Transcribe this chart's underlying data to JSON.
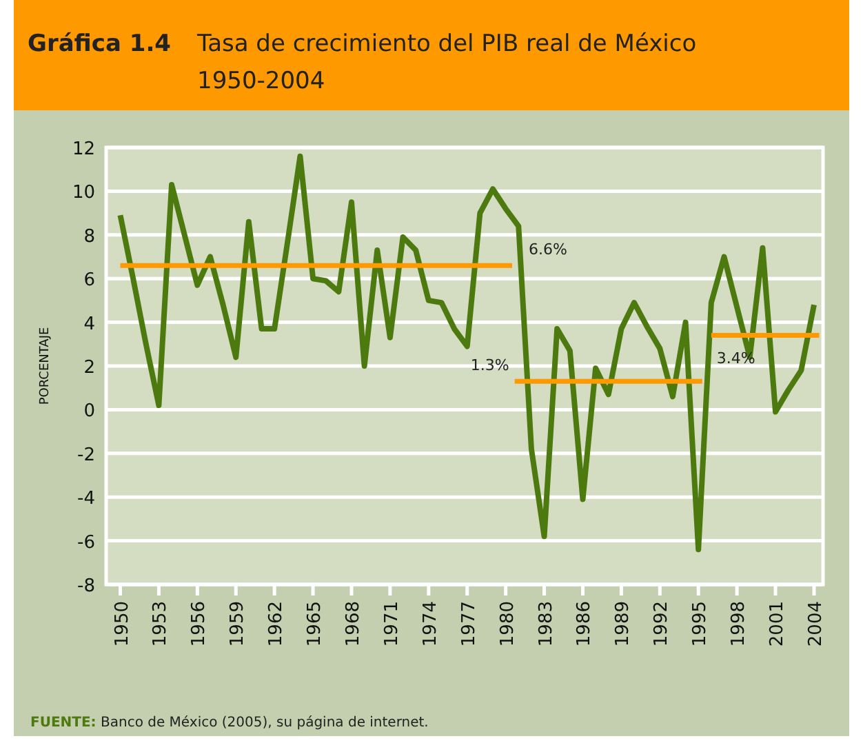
{
  "chart_data": {
    "type": "line",
    "title": "Gráfica 1.4",
    "subtitle": "Tasa de crecimiento del PIB real de México 1950-2004",
    "ylabel": "PORCENTAJE",
    "annotations": [
      "FUENTE: Banco de México (2005), su página de internet."
    ],
    "x": [
      1950,
      1951,
      1952,
      1953,
      1954,
      1955,
      1956,
      1957,
      1958,
      1959,
      1960,
      1961,
      1962,
      1963,
      1964,
      1965,
      1966,
      1967,
      1968,
      1969,
      1970,
      1971,
      1972,
      1973,
      1974,
      1975,
      1976,
      1977,
      1978,
      1979,
      1980,
      1981,
      1982,
      1983,
      1984,
      1985,
      1986,
      1987,
      1988,
      1989,
      1990,
      1991,
      1992,
      1993,
      1994,
      1995,
      1996,
      1997,
      1998,
      1999,
      2000,
      2001,
      2002,
      2003,
      2004
    ],
    "series": [
      {
        "color": "#4d7a0f",
        "values": [
          8.9,
          6.0,
          3.0,
          0.2,
          10.3,
          8.0,
          5.7,
          7.0,
          4.8,
          2.4,
          8.6,
          3.7,
          3.7,
          7.6,
          11.6,
          6.0,
          5.9,
          5.4,
          9.5,
          2.0,
          7.3,
          3.3,
          7.9,
          7.3,
          5.0,
          4.9,
          3.7,
          2.9,
          9.0,
          10.1,
          9.2,
          8.4,
          -1.8,
          -5.8,
          3.7,
          2.7,
          -4.1,
          1.9,
          0.7,
          3.7,
          4.9,
          3.8,
          2.8,
          0.6,
          4.0,
          -6.4,
          4.9,
          7.0,
          4.7,
          2.4,
          7.4,
          -0.1,
          0.9,
          1.8,
          4.8
        ]
      },
      {
        "name": "6.6%",
        "color": "#ff9900",
        "x": [
          1950,
          1980.5
        ],
        "values": [
          6.6,
          6.6
        ]
      },
      {
        "name": "1.3%",
        "color": "#ff9900",
        "x": [
          1980.7,
          1995.3
        ],
        "values": [
          1.3,
          1.3
        ]
      },
      {
        "name": "3.4%",
        "color": "#ff9900",
        "x": [
          1996,
          2004.4
        ],
        "values": [
          3.4,
          3.4
        ]
      }
    ],
    "xlim": [
      1948.9,
      2004.7
    ],
    "xticks": [
      1950,
      1953,
      1956,
      1959,
      1962,
      1965,
      1968,
      1971,
      1974,
      1977,
      1980,
      1983,
      1986,
      1989,
      1992,
      1995,
      1998,
      2001,
      2004
    ],
    "ylim": [
      -8,
      12
    ],
    "yticks": [
      -8,
      -6,
      -4,
      -2,
      0,
      2,
      4,
      6,
      8,
      10,
      12
    ],
    "grid": "y"
  }
}
